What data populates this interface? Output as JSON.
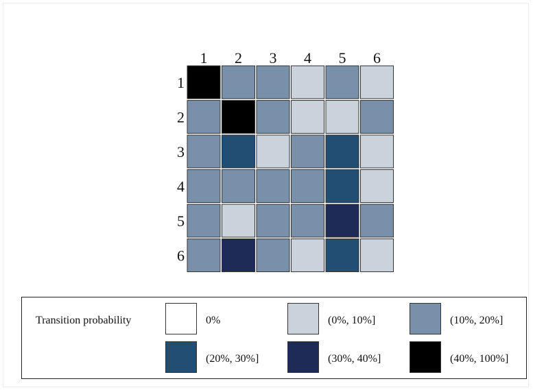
{
  "chart_data": {
    "type": "heatmap",
    "title": "",
    "row_labels": [
      "1",
      "2",
      "3",
      "4",
      "5",
      "6"
    ],
    "col_labels": [
      "1",
      "2",
      "3",
      "4",
      "5",
      "6"
    ],
    "value_unit": "bin index (0 = 0%, 1 = (0%, 10%], 2 = (10%, 20%], 3 = (20%, 30%], 4 = (30%, 40%], 5 = (40%, 100%])",
    "matrix": [
      [
        5,
        2,
        2,
        1,
        2,
        1
      ],
      [
        2,
        5,
        2,
        1,
        1,
        2
      ],
      [
        2,
        3,
        1,
        2,
        3,
        1
      ],
      [
        2,
        2,
        2,
        2,
        3,
        1
      ],
      [
        2,
        1,
        2,
        2,
        4,
        2
      ],
      [
        2,
        4,
        2,
        1,
        3,
        1
      ]
    ]
  },
  "legend": {
    "title": "Transition probability",
    "bins": [
      {
        "label": "0%",
        "color": "#ffffff"
      },
      {
        "label": "(0%, 10%]",
        "color": "#cad2dc"
      },
      {
        "label": "(10%, 20%]",
        "color": "#7890a9"
      },
      {
        "label": "(20%, 30%]",
        "color": "#234e74"
      },
      {
        "label": "(30%, 40%]",
        "color": "#1f2b57"
      },
      {
        "label": "(40%, 100%]",
        "color": "#000000"
      }
    ]
  }
}
